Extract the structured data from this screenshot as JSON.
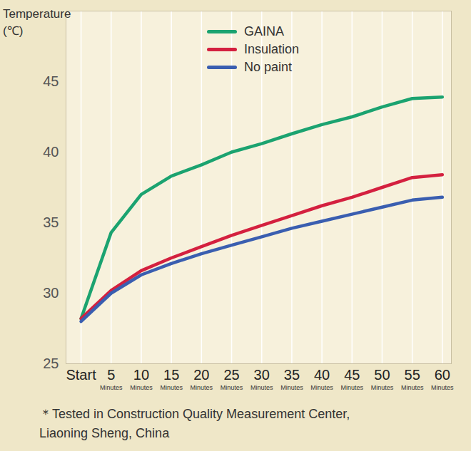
{
  "chart_data": {
    "type": "line",
    "y_label": "Temperature\n(℃)",
    "x": [
      0,
      5,
      10,
      15,
      20,
      25,
      30,
      35,
      40,
      45,
      50,
      55,
      60
    ],
    "xlim": [
      -2.5,
      61.5
    ],
    "xticks": [
      {
        "value": 0,
        "label": "Start"
      },
      {
        "value": 5,
        "label": "5",
        "sublabel": "Minutes"
      },
      {
        "value": 10,
        "label": "10",
        "sublabel": "Minutes"
      },
      {
        "value": 15,
        "label": "15",
        "sublabel": "Minutes"
      },
      {
        "value": 20,
        "label": "20",
        "sublabel": "Minutes"
      },
      {
        "value": 25,
        "label": "25",
        "sublabel": "Minutes"
      },
      {
        "value": 30,
        "label": "30",
        "sublabel": "Minutes"
      },
      {
        "value": 35,
        "label": "35",
        "sublabel": "Minutes"
      },
      {
        "value": 40,
        "label": "40",
        "sublabel": "Minutes"
      },
      {
        "value": 45,
        "label": "45",
        "sublabel": "Minutes"
      },
      {
        "value": 50,
        "label": "50",
        "sublabel": "Minutes"
      },
      {
        "value": 55,
        "label": "55",
        "sublabel": "Minutes"
      },
      {
        "value": 60,
        "label": "60",
        "sublabel": "Minutes"
      }
    ],
    "ylim": [
      25,
      50
    ],
    "yticks": [
      25,
      30,
      35,
      40,
      45
    ],
    "grid": "x",
    "legend": "top",
    "series": [
      {
        "name": "GAINA",
        "color": "#1ba370",
        "values": [
          28.2,
          34.3,
          37.0,
          38.3,
          39.1,
          40.0,
          40.6,
          41.3,
          41.95,
          42.5,
          43.2,
          43.8,
          43.9
        ]
      },
      {
        "name": "Insulation",
        "color": "#d4203f",
        "values": [
          28.2,
          30.2,
          31.6,
          32.5,
          33.3,
          34.1,
          34.8,
          35.5,
          36.2,
          36.8,
          37.5,
          38.2,
          38.4
        ]
      },
      {
        "name": "No paint",
        "color": "#3a5eb0",
        "values": [
          28.0,
          30.0,
          31.3,
          32.1,
          32.8,
          33.4,
          34.0,
          34.6,
          35.1,
          35.6,
          36.1,
          36.6,
          36.8
        ]
      }
    ],
    "caption": "＊Tested in Construction Quality Measurement Center,\nLiaoning Sheng, China"
  }
}
